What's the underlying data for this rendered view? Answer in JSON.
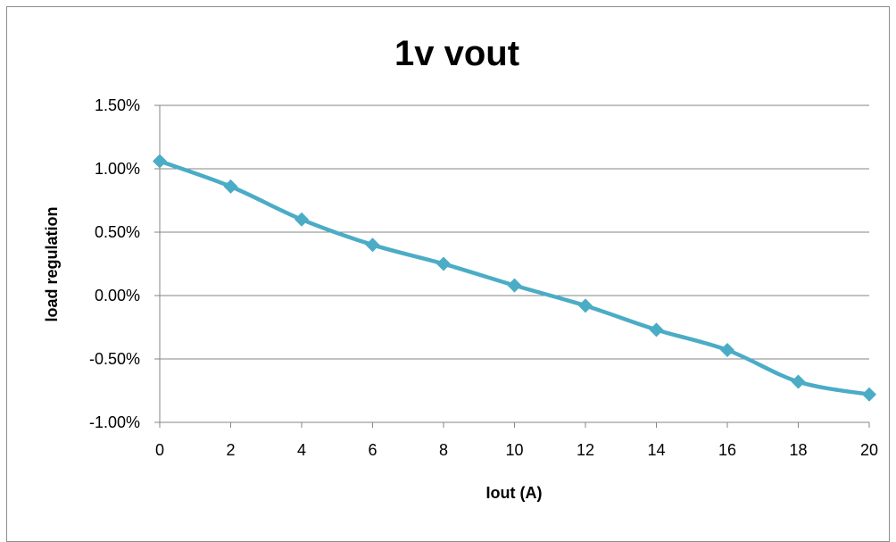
{
  "chart_data": {
    "type": "line",
    "title": "1v vout",
    "xlabel": "Iout (A)",
    "ylabel": "load regulation",
    "x": [
      0,
      2,
      4,
      6,
      8,
      10,
      12,
      14,
      16,
      18,
      20
    ],
    "series": [
      {
        "values": [
          0.0106,
          0.0086,
          0.006,
          0.004,
          0.0025,
          0.0008,
          -0.0008,
          -0.0027,
          -0.0043,
          -0.0068,
          -0.0078
        ]
      }
    ],
    "xlim": [
      0,
      20
    ],
    "ylim": [
      -0.01,
      0.015
    ],
    "x_ticks": [
      "0",
      "2",
      "4",
      "6",
      "8",
      "10",
      "12",
      "14",
      "16",
      "18",
      "20"
    ],
    "y_ticks": [
      {
        "value": 0.015,
        "label": "1.50%"
      },
      {
        "value": 0.01,
        "label": "1.00%"
      },
      {
        "value": 0.005,
        "label": "0.50%"
      },
      {
        "value": 0.0,
        "label": "0.00%"
      },
      {
        "value": -0.005,
        "label": "-0.50%"
      },
      {
        "value": -0.01,
        "label": "-1.00%"
      }
    ],
    "grid": true,
    "legend": "none",
    "colors": {
      "series": "#4bacc6",
      "grid": "#868686",
      "axis": "#868686"
    }
  }
}
